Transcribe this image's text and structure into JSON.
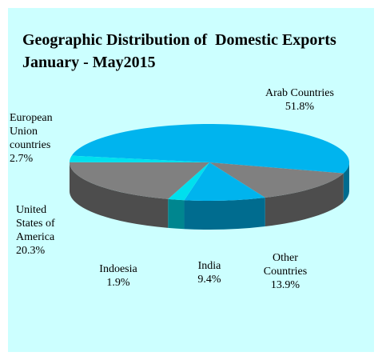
{
  "chart_data": {
    "type": "pie",
    "title": "Geographic Distribution of  Domestic Exports  January - May2015",
    "categories": [
      "Arab Countries",
      "Other Countries",
      "India",
      "Indoesia",
      "United States of America",
      "European Union countries"
    ],
    "values": [
      51.8,
      13.9,
      9.4,
      1.9,
      20.3,
      2.7
    ],
    "value_labels": [
      "51.8%",
      "13.9%",
      "9.4%",
      "1.9%",
      "20.3%",
      "2.7%"
    ],
    "colors": [
      "#00b4ee",
      "#808080",
      "#00b4ee",
      "#00e0ee",
      "#808080",
      "#00e0ee"
    ]
  }
}
